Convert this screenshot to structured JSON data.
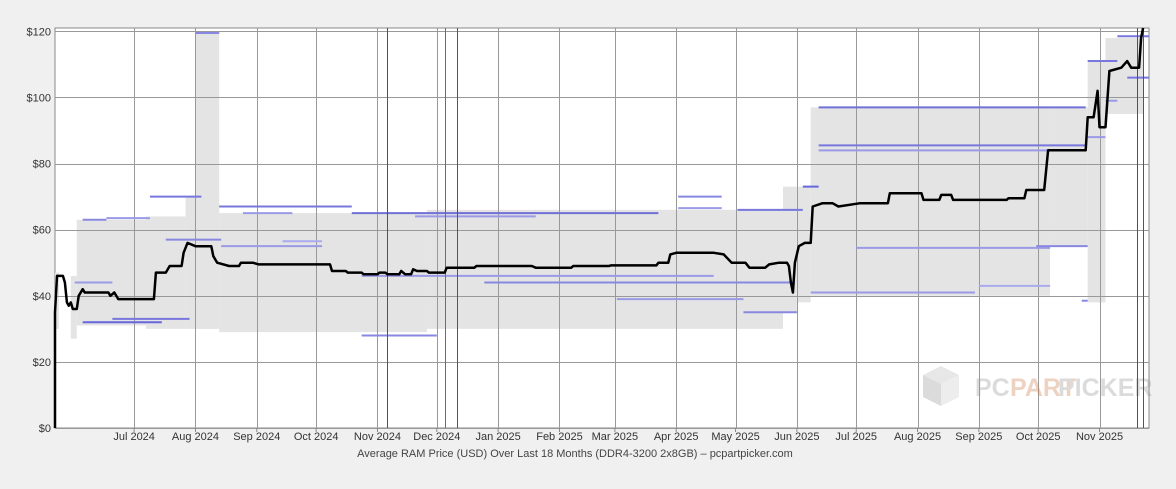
{
  "chart_data": {
    "type": "line",
    "title": "Average RAM Price (USD) Over Last 18 Months (DDR4-3200 2x8GB) – pcpartpicker.com",
    "xlabel": "",
    "ylabel": "",
    "y_unit": "USD",
    "ylim": [
      0,
      121
    ],
    "xlim": [
      "2024-05-22",
      "2025-11-26"
    ],
    "grid": true,
    "y_ticks": [
      {
        "value": 0,
        "label": "$0"
      },
      {
        "value": 20,
        "label": "$20"
      },
      {
        "value": 40,
        "label": "$40"
      },
      {
        "value": 60,
        "label": "$60"
      },
      {
        "value": 80,
        "label": "$80"
      },
      {
        "value": 100,
        "label": "$100"
      },
      {
        "value": 120,
        "label": "$120"
      }
    ],
    "x_ticks": [
      {
        "date": "2024-07-01",
        "label": "Jul 2024"
      },
      {
        "date": "2024-08-01",
        "label": "Aug 2024"
      },
      {
        "date": "2024-09-01",
        "label": "Sep 2024"
      },
      {
        "date": "2024-10-01",
        "label": "Oct 2024"
      },
      {
        "date": "2024-11-01",
        "label": "Nov 2024"
      },
      {
        "date": "2024-12-01",
        "label": "Dec 2024"
      },
      {
        "date": "2025-01-01",
        "label": "Jan 2025"
      },
      {
        "date": "2025-02-01",
        "label": "Feb 2025"
      },
      {
        "date": "2025-03-01",
        "label": "Mar 2025"
      },
      {
        "date": "2025-04-01",
        "label": "Apr 2025"
      },
      {
        "date": "2025-05-01",
        "label": "May 2025"
      },
      {
        "date": "2025-06-01",
        "label": "Jun 2025"
      },
      {
        "date": "2025-07-01",
        "label": "Jul 2025"
      },
      {
        "date": "2025-08-01",
        "label": "Aug 2025"
      },
      {
        "date": "2025-09-01",
        "label": "Sep 2025"
      },
      {
        "date": "2025-10-01",
        "label": "Oct 2025"
      },
      {
        "date": "2025-11-01",
        "label": "Nov 2025"
      }
    ],
    "series": [
      {
        "color": "#000000",
        "points": [
          [
            "2024-05-22",
            0
          ],
          [
            "2024-05-22",
            35
          ],
          [
            "2024-05-23",
            46
          ],
          [
            "2024-05-26",
            46
          ],
          [
            "2024-05-27",
            44
          ],
          [
            "2024-05-28",
            38
          ],
          [
            "2024-05-29",
            37
          ],
          [
            "2024-05-30",
            38
          ],
          [
            "2024-05-31",
            36
          ],
          [
            "2024-06-02",
            36
          ],
          [
            "2024-06-03",
            40
          ],
          [
            "2024-06-05",
            42
          ],
          [
            "2024-06-06",
            41
          ],
          [
            "2024-06-18",
            41
          ],
          [
            "2024-06-19",
            40
          ],
          [
            "2024-06-21",
            41
          ],
          [
            "2024-06-23",
            39
          ],
          [
            "2024-07-11",
            39
          ],
          [
            "2024-07-12",
            47
          ],
          [
            "2024-07-17",
            47
          ],
          [
            "2024-07-19",
            49
          ],
          [
            "2024-07-25",
            49
          ],
          [
            "2024-07-26",
            53
          ],
          [
            "2024-07-28",
            56
          ],
          [
            "2024-08-01",
            55
          ],
          [
            "2024-08-05",
            55
          ],
          [
            "2024-08-09",
            55
          ],
          [
            "2024-08-10",
            52
          ],
          [
            "2024-08-12",
            50
          ],
          [
            "2024-08-18",
            49
          ],
          [
            "2024-08-23",
            49
          ],
          [
            "2024-08-24",
            50
          ],
          [
            "2024-08-30",
            50
          ],
          [
            "2024-09-02",
            49.5
          ],
          [
            "2024-09-10",
            49.5
          ],
          [
            "2024-09-17",
            49.5
          ],
          [
            "2024-10-05",
            49.5
          ],
          [
            "2024-10-08",
            49.5
          ],
          [
            "2024-10-09",
            47.5
          ],
          [
            "2024-10-16",
            47.5
          ],
          [
            "2024-10-17",
            47
          ],
          [
            "2024-10-24",
            47
          ],
          [
            "2024-10-25",
            46.5
          ],
          [
            "2024-11-01",
            46.5
          ],
          [
            "2024-11-02",
            47
          ],
          [
            "2024-11-05",
            47
          ],
          [
            "2024-11-06",
            46.5
          ],
          [
            "2024-11-12",
            46.5
          ],
          [
            "2024-11-13",
            47.5
          ],
          [
            "2024-11-15",
            46.5
          ],
          [
            "2024-11-18",
            46.5
          ],
          [
            "2024-11-19",
            48
          ],
          [
            "2024-11-21",
            47.5
          ],
          [
            "2024-11-26",
            47.5
          ],
          [
            "2024-11-27",
            47
          ],
          [
            "2024-12-05",
            47
          ],
          [
            "2024-12-06",
            48.5
          ],
          [
            "2024-12-20",
            48.5
          ],
          [
            "2024-12-21",
            49
          ],
          [
            "2025-01-18",
            49
          ],
          [
            "2025-01-20",
            48.5
          ],
          [
            "2025-02-07",
            48.5
          ],
          [
            "2025-02-08",
            49
          ],
          [
            "2025-02-26",
            49
          ],
          [
            "2025-02-27",
            49.2
          ],
          [
            "2025-03-22",
            49.2
          ],
          [
            "2025-03-23",
            50
          ],
          [
            "2025-03-28",
            50
          ],
          [
            "2025-03-29",
            52.5
          ],
          [
            "2025-04-01",
            53
          ],
          [
            "2025-04-20",
            53
          ],
          [
            "2025-04-25",
            52.5
          ],
          [
            "2025-04-29",
            50
          ],
          [
            "2025-05-06",
            50
          ],
          [
            "2025-05-08",
            48.5
          ],
          [
            "2025-05-16",
            48.5
          ],
          [
            "2025-05-18",
            49.5
          ],
          [
            "2025-05-23",
            50
          ],
          [
            "2025-05-27",
            50
          ],
          [
            "2025-05-28",
            49
          ],
          [
            "2025-05-29",
            44
          ],
          [
            "2025-05-30",
            41
          ],
          [
            "2025-05-31",
            50
          ],
          [
            "2025-06-02",
            55
          ],
          [
            "2025-06-05",
            56
          ],
          [
            "2025-06-08",
            56
          ],
          [
            "2025-06-09",
            67
          ],
          [
            "2025-06-14",
            68
          ],
          [
            "2025-06-19",
            68
          ],
          [
            "2025-06-22",
            67
          ],
          [
            "2025-07-03",
            68
          ],
          [
            "2025-07-17",
            68
          ],
          [
            "2025-07-18",
            71
          ],
          [
            "2025-08-03",
            71
          ],
          [
            "2025-08-04",
            69
          ],
          [
            "2025-08-12",
            69
          ],
          [
            "2025-08-13",
            70.5
          ],
          [
            "2025-08-18",
            70.5
          ],
          [
            "2025-08-19",
            69
          ],
          [
            "2025-09-15",
            69
          ],
          [
            "2025-09-16",
            69.5
          ],
          [
            "2025-09-24",
            69.5
          ],
          [
            "2025-09-25",
            72
          ],
          [
            "2025-10-04",
            72
          ],
          [
            "2025-10-06",
            84
          ],
          [
            "2025-10-25",
            84
          ],
          [
            "2025-10-26",
            94
          ],
          [
            "2025-10-29",
            94
          ],
          [
            "2025-10-31",
            102
          ],
          [
            "2025-11-01",
            91
          ],
          [
            "2025-11-04",
            91
          ],
          [
            "2025-11-06",
            108
          ],
          [
            "2025-11-12",
            109
          ],
          [
            "2025-11-15",
            111
          ],
          [
            "2025-11-17",
            109
          ],
          [
            "2025-11-21",
            109
          ],
          [
            "2025-11-22",
            118
          ],
          [
            "2025-11-23",
            121
          ]
        ]
      }
    ],
    "ranges": [
      {
        "x0": "2024-05-22",
        "x1": "2024-05-24",
        "y0": 30,
        "y1": 47
      },
      {
        "x0": "2024-05-30",
        "x1": "2024-06-02",
        "y0": 27,
        "y1": 46
      },
      {
        "x0": "2024-06-02",
        "x1": "2024-07-07",
        "y0": 31,
        "y1": 63
      },
      {
        "x0": "2024-07-07",
        "x1": "2024-07-27",
        "y0": 30,
        "y1": 64
      },
      {
        "x0": "2024-07-27",
        "x1": "2024-08-13",
        "y0": 30,
        "y1": 70
      },
      {
        "x0": "2024-08-01",
        "x1": "2024-08-13",
        "y0": 30,
        "y1": 120
      },
      {
        "x0": "2024-08-13",
        "x1": "2024-11-26",
        "y0": 29,
        "y1": 65
      },
      {
        "x0": "2024-11-26",
        "x1": "2025-05-25",
        "y0": 30,
        "y1": 66
      },
      {
        "x0": "2025-05-25",
        "x1": "2025-06-01",
        "y0": 35,
        "y1": 73
      },
      {
        "x0": "2025-06-01",
        "x1": "2025-06-08",
        "y0": 38,
        "y1": 73
      },
      {
        "x0": "2025-06-08",
        "x1": "2025-10-07",
        "y0": 40,
        "y1": 97
      },
      {
        "x0": "2025-10-07",
        "x1": "2025-10-26",
        "y0": 55,
        "y1": 97
      },
      {
        "x0": "2025-10-26",
        "x1": "2025-11-04",
        "y0": 38,
        "y1": 111
      },
      {
        "x0": "2025-11-04",
        "x1": "2025-11-23",
        "y0": 95,
        "y1": 118
      }
    ],
    "store_price_lines": [
      {
        "x0": "2024-06-05",
        "x1": "2024-06-17",
        "y": 63,
        "c": "#8888e0"
      },
      {
        "x0": "2024-06-17",
        "x1": "2024-07-09",
        "y": 63.5,
        "c": "#9a9ae6"
      },
      {
        "x0": "2024-07-09",
        "x1": "2024-08-04",
        "y": 70,
        "c": "#7777dd"
      },
      {
        "x0": "2024-08-01",
        "x1": "2024-08-13",
        "y": 119.5,
        "c": "#8888e0"
      },
      {
        "x0": "2024-08-13",
        "x1": "2024-10-19",
        "y": 67,
        "c": "#7777dd"
      },
      {
        "x0": "2024-08-25",
        "x1": "2024-09-19",
        "y": 65,
        "c": "#9a9ae6"
      },
      {
        "x0": "2024-10-19",
        "x1": "2025-03-23",
        "y": 65,
        "c": "#7070d8"
      },
      {
        "x0": "2024-11-20",
        "x1": "2025-01-20",
        "y": 64,
        "c": "#9a9ae6"
      },
      {
        "x0": "2025-04-02",
        "x1": "2025-04-24",
        "y": 70,
        "c": "#8888e0"
      },
      {
        "x0": "2025-04-02",
        "x1": "2025-04-24",
        "y": 66.5,
        "c": "#9a9ae6"
      },
      {
        "x0": "2025-05-02",
        "x1": "2025-06-04",
        "y": 66,
        "c": "#7777dd"
      },
      {
        "x0": "2025-06-04",
        "x1": "2025-06-12",
        "y": 73,
        "c": "#6666dd"
      },
      {
        "x0": "2025-06-12",
        "x1": "2025-10-25",
        "y": 97,
        "c": "#7070d8"
      },
      {
        "x0": "2025-06-12",
        "x1": "2025-10-25",
        "y": 85.5,
        "c": "#7777dd"
      },
      {
        "x0": "2025-06-12",
        "x1": "2025-10-25",
        "y": 84,
        "c": "#9a9ae6"
      },
      {
        "x0": "2025-10-26",
        "x1": "2025-11-10",
        "y": 111,
        "c": "#7777dd"
      },
      {
        "x0": "2025-11-10",
        "x1": "2025-11-26",
        "y": 118.5,
        "c": "#7777dd"
      },
      {
        "x0": "2025-11-15",
        "x1": "2025-11-26",
        "y": 106,
        "c": "#7777dd"
      },
      {
        "x0": "2025-11-04",
        "x1": "2025-11-10",
        "y": 99,
        "c": "#9a9ae6"
      },
      {
        "x0": "2024-06-01",
        "x1": "2024-06-20",
        "y": 44,
        "c": "#9a9ae6"
      },
      {
        "x0": "2024-06-05",
        "x1": "2024-07-15",
        "y": 32,
        "c": "#6666dd"
      },
      {
        "x0": "2024-06-20",
        "x1": "2024-07-29",
        "y": 33,
        "c": "#7777dd"
      },
      {
        "x0": "2024-07-17",
        "x1": "2024-08-14",
        "y": 57,
        "c": "#8888e0"
      },
      {
        "x0": "2024-08-14",
        "x1": "2024-10-04",
        "y": 55,
        "c": "#9a9ae6"
      },
      {
        "x0": "2024-09-14",
        "x1": "2024-10-04",
        "y": 56.5,
        "c": "#aaaaee"
      },
      {
        "x0": "2024-10-24",
        "x1": "2025-04-20",
        "y": 46,
        "c": "#9a9ae6"
      },
      {
        "x0": "2024-10-24",
        "x1": "2024-12-01",
        "y": 28,
        "c": "#8888e0"
      },
      {
        "x0": "2024-12-25",
        "x1": "2025-05-31",
        "y": 44,
        "c": "#8888e0"
      },
      {
        "x0": "2025-03-02",
        "x1": "2025-05-05",
        "y": 39,
        "c": "#9a9ae6"
      },
      {
        "x0": "2025-05-05",
        "x1": "2025-06-01",
        "y": 35,
        "c": "#8888e0"
      },
      {
        "x0": "2025-06-08",
        "x1": "2025-08-30",
        "y": 41,
        "c": "#9a9ae6"
      },
      {
        "x0": "2025-07-01",
        "x1": "2025-10-07",
        "y": 54.5,
        "c": "#9a9ae6"
      },
      {
        "x0": "2025-09-01",
        "x1": "2025-10-07",
        "y": 43,
        "c": "#aaaaee"
      },
      {
        "x0": "2025-09-30",
        "x1": "2025-10-26",
        "y": 55,
        "c": "#8888e0"
      },
      {
        "x0": "2025-10-26",
        "x1": "2025-11-04",
        "y": 88,
        "c": "#9a9ae6"
      },
      {
        "x0": "2025-10-23",
        "x1": "2025-10-26",
        "y": 38.5,
        "c": "#8888e0"
      }
    ],
    "vertical_markers": [
      {
        "date": "2024-11-06",
        "color": "#4444bb"
      },
      {
        "date": "2024-12-05",
        "color": "#cc4444"
      },
      {
        "date": "2024-12-11",
        "color": "#555555"
      },
      {
        "date": "2025-11-20",
        "color": "#4444bb"
      },
      {
        "date": "2025-11-23",
        "color": "#555555"
      }
    ]
  },
  "watermark": {
    "text_pc": "PC",
    "text_part": "PART",
    "text_picker": "PICKER"
  }
}
